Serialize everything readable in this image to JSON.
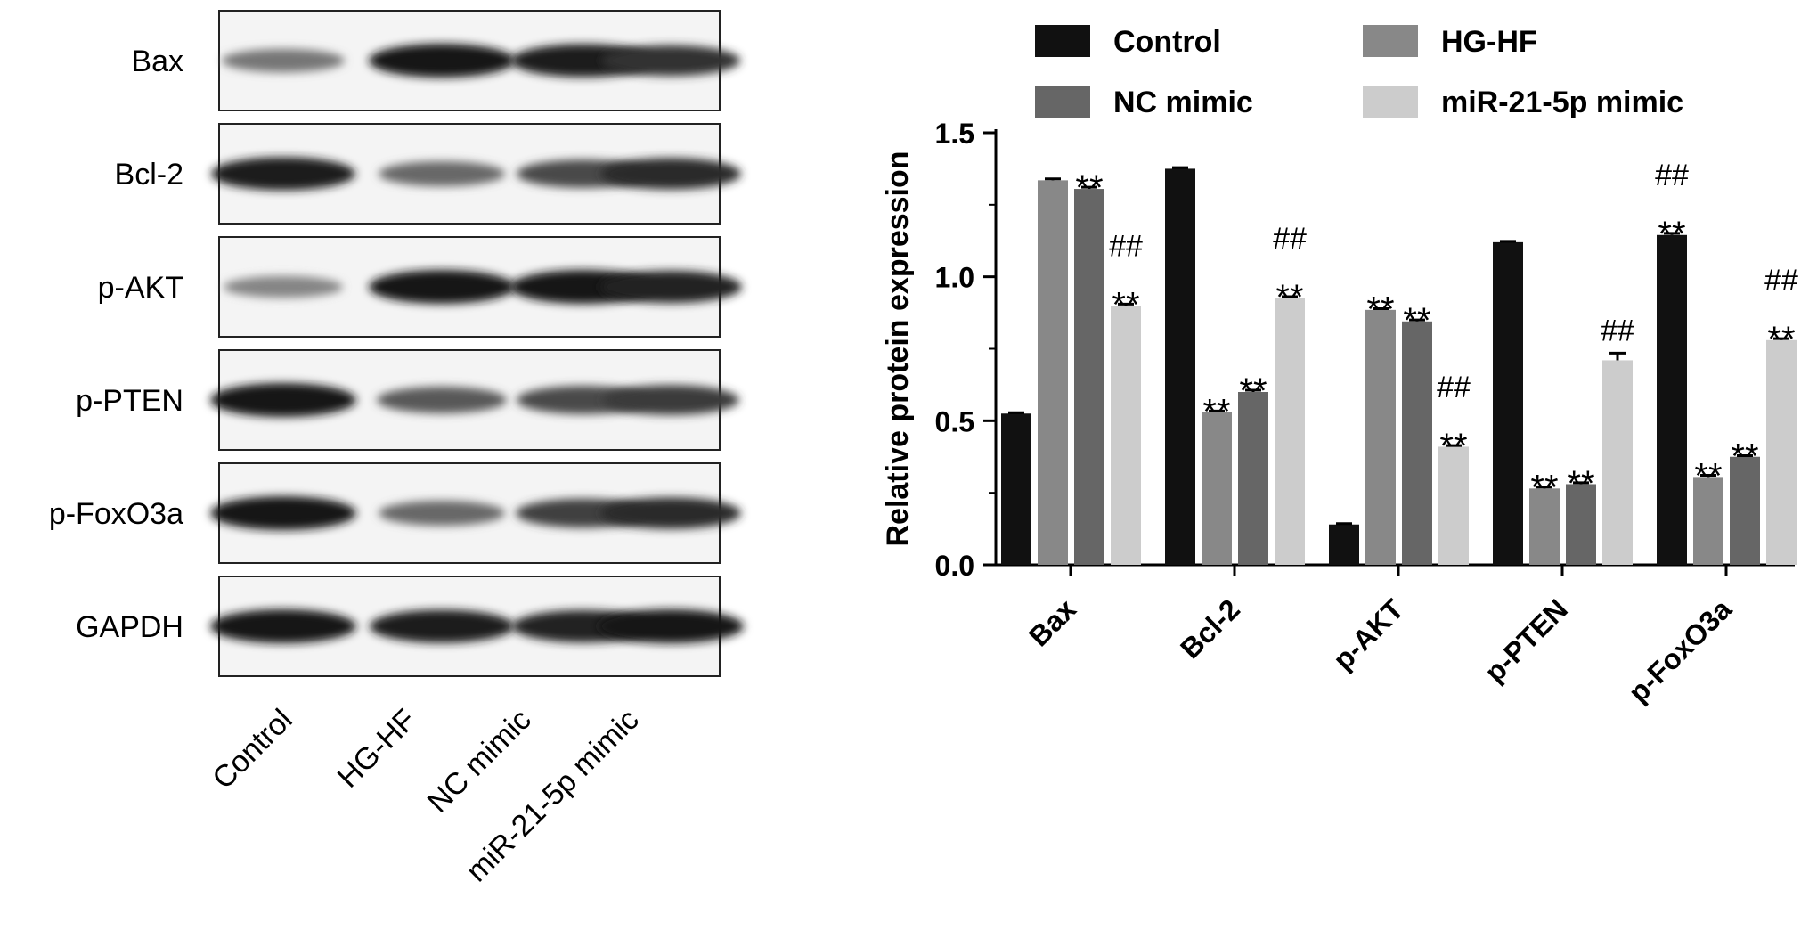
{
  "blot": {
    "proteins": [
      "Bax",
      "Bcl-2",
      "p-AKT",
      "p-PTEN",
      "p-FoxO3a",
      "GAPDH"
    ],
    "lanes": [
      "Control",
      "HG-HF",
      "NC mimic",
      "miR-21-5p mimic"
    ],
    "band_intensity": [
      [
        0.35,
        1.0,
        0.95,
        0.8
      ],
      [
        0.95,
        0.45,
        0.65,
        0.85
      ],
      [
        0.25,
        1.0,
        1.0,
        0.9
      ],
      [
        1.0,
        0.55,
        0.65,
        0.75
      ],
      [
        1.0,
        0.45,
        0.7,
        0.85
      ],
      [
        1.0,
        0.95,
        0.9,
        1.0
      ]
    ]
  },
  "chart_data": {
    "type": "bar",
    "xlabel": "",
    "ylabel": "Relative protein expression",
    "ylim": [
      0.0,
      1.5
    ],
    "yticks": [
      "0.0",
      "0.5",
      "1.0",
      "1.5"
    ],
    "grid": false,
    "legend_position": "top",
    "categories": [
      "Bax",
      "Bcl-2",
      "p-AKT",
      "p-PTEN",
      "p-FoxO3a"
    ],
    "series": [
      {
        "name": "Control",
        "color": "#111111",
        "values": [
          0.525,
          1.375,
          0.14,
          1.12,
          1.145
        ],
        "errors": [
          0.003,
          0.004,
          0.003,
          0.003,
          0.006
        ],
        "annotations": [
          "",
          "",
          "",
          "",
          ""
        ]
      },
      {
        "name": "HG-HF",
        "color": "#888888",
        "values": [
          1.335,
          0.53,
          0.885,
          0.265,
          0.305
        ],
        "errors": [
          0.005,
          0.004,
          0.004,
          0.005,
          0.006
        ],
        "annotations": [
          "",
          "**",
          "**",
          "**",
          "**"
        ]
      },
      {
        "name": "NC mimic",
        "color": "#666666",
        "values": [
          1.305,
          0.6,
          0.845,
          0.28,
          0.375
        ],
        "errors": [
          0.006,
          0.006,
          0.005,
          0.005,
          0.004
        ],
        "annotations": [
          "**",
          "**",
          "**",
          "**",
          "**"
        ]
      },
      {
        "name": "miR-21-5p mimic",
        "color": "#cccccc",
        "values": [
          0.9,
          0.925,
          0.41,
          0.71,
          0.78
        ],
        "errors": [
          0.005,
          0.006,
          0.004,
          0.025,
          0.005
        ],
        "annotations": [
          "##\n**",
          "##\n**",
          "##\n**",
          "##",
          "##\n**"
        ]
      }
    ],
    "extra_annotations": [
      {
        "category": "p-FoxO3a",
        "series": "Control",
        "text": "##\n**"
      }
    ]
  }
}
